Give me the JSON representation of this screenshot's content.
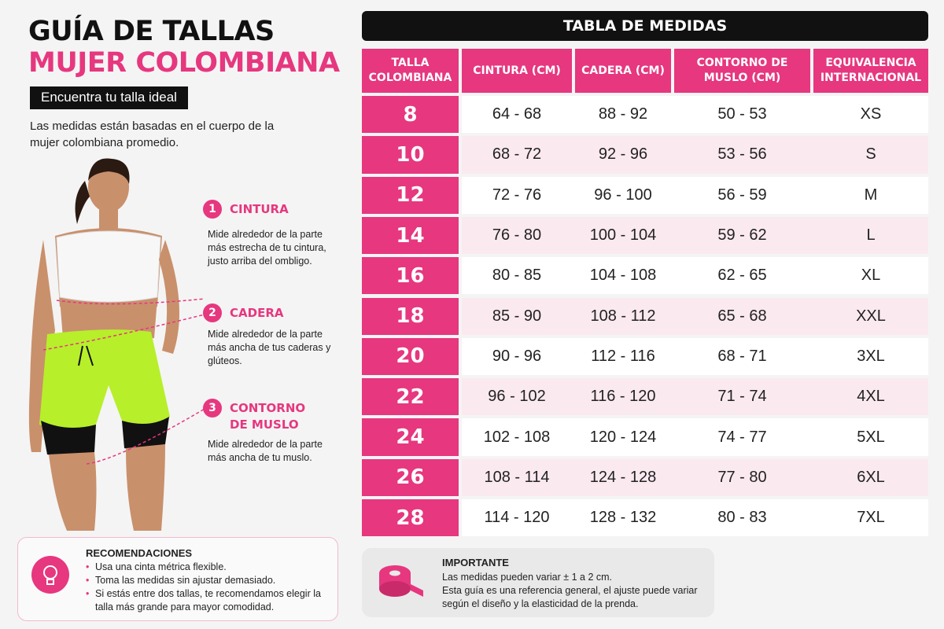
{
  "header": {
    "title_line1": "GUÍA DE TALLAS",
    "title_line2": "MUJER COLOMBIANA",
    "tag": "Encuentra tu talla ideal",
    "intro": "Las medidas están basadas en el cuerpo de la mujer colombiana promedio."
  },
  "measures": [
    {
      "number": "1",
      "label": "CINTURA",
      "description": "Mide alrededor de la parte más estrecha de tu cintura, justo arriba del ombligo."
    },
    {
      "number": "2",
      "label": "CADERA",
      "description": "Mide alrededor de la parte más ancha de tus caderas y glúteos."
    },
    {
      "number": "3",
      "label": "CONTORNO DE MUSLO",
      "description": "Mide alrededor de la parte más ancha de tu muslo."
    }
  ],
  "recommendations": {
    "title": "RECOMENDACIONES",
    "items": [
      "Usa una cinta métrica flexible.",
      "Toma las medidas sin ajustar demasiado.",
      "Si estás entre dos tallas, te recomendamos elegir la talla más grande para mayor comodidad."
    ]
  },
  "table": {
    "title": "TABLA DE MEDIDAS",
    "headers": [
      "TALLA COLOMBIANA",
      "CINTURA (CM)",
      "CADERA (CM)",
      "CONTORNO DE MUSLO (CM)",
      "EQUIVALENCIA INTERNACIONAL"
    ],
    "rows": [
      [
        "8",
        "64 - 68",
        "88 - 92",
        "50 - 53",
        "XS"
      ],
      [
        "10",
        "68 - 72",
        "92 - 96",
        "53 - 56",
        "S"
      ],
      [
        "12",
        "72 - 76",
        "96 - 100",
        "56 - 59",
        "M"
      ],
      [
        "14",
        "76 - 80",
        "100 - 104",
        "59 - 62",
        "L"
      ],
      [
        "16",
        "80 - 85",
        "104 - 108",
        "62 - 65",
        "XL"
      ],
      [
        "18",
        "85 - 90",
        "108 - 112",
        "65 - 68",
        "XXL"
      ],
      [
        "20",
        "90 - 96",
        "112 - 116",
        "68 - 71",
        "3XL"
      ],
      [
        "22",
        "96 - 102",
        "116 - 120",
        "71 - 74",
        "4XL"
      ],
      [
        "24",
        "102 - 108",
        "120 - 124",
        "74 - 77",
        "5XL"
      ],
      [
        "26",
        "108 - 114",
        "124 - 128",
        "77 - 80",
        "6XL"
      ],
      [
        "28",
        "114 - 120",
        "128 - 132",
        "80 - 83",
        "7XL"
      ]
    ]
  },
  "important": {
    "title": "IMPORTANTE",
    "lines": [
      "Las medidas pueden variar ± 1 a 2 cm.",
      "Esta guía es una referencia general, el ajuste puede variar según el diseño y la elasticidad de la prenda."
    ]
  }
}
